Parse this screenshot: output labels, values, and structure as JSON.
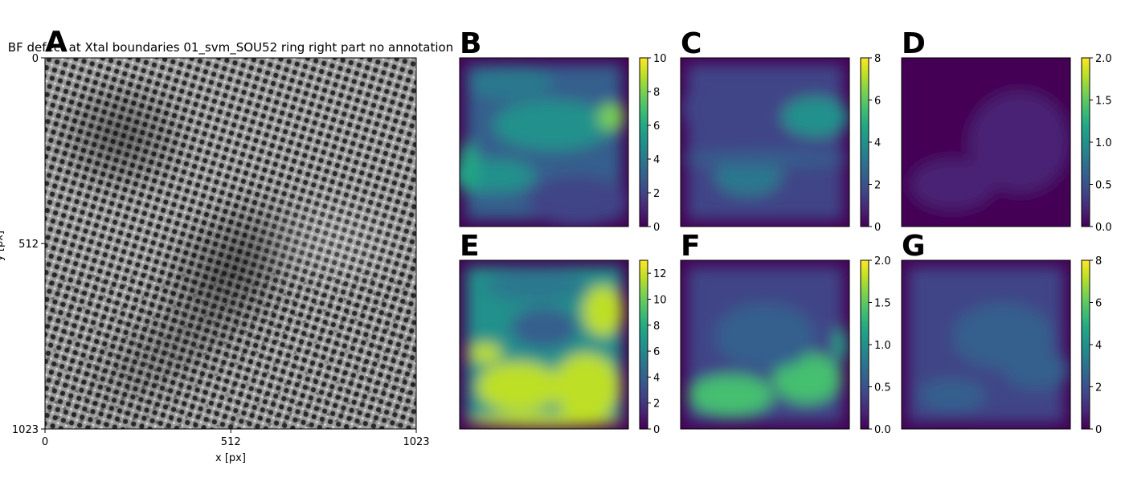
{
  "colors": {
    "viridis": [
      "#440154",
      "#482475",
      "#414487",
      "#355f8d",
      "#2a788e",
      "#21918c",
      "#22a884",
      "#44bf70",
      "#7ad151",
      "#bddf26",
      "#fde725"
    ],
    "axis": "#000000"
  },
  "chart_data": [
    {
      "type": "heatmap",
      "panel": "A",
      "title": "BF defect at Xtal boundaries 01_svm_SOU52 ring right part no annotation",
      "xlabel": "x [px]",
      "ylabel": "y [px]",
      "xlim": [
        0,
        1023
      ],
      "ylim": [
        0,
        1023
      ],
      "xticks": [
        "0",
        "512",
        "1023"
      ],
      "yticks": [
        "0",
        "512",
        "1023"
      ],
      "colormap": "gray",
      "description_visible": "grayscale HRTEM lattice image"
    },
    {
      "type": "heatmap",
      "panel": "B",
      "colormap": "viridis",
      "clim": [
        0,
        10
      ],
      "cbar_ticks": [
        "0",
        "2",
        "4",
        "6",
        "8",
        "10"
      ]
    },
    {
      "type": "heatmap",
      "panel": "C",
      "colormap": "viridis",
      "clim": [
        0,
        8
      ],
      "cbar_ticks": [
        "0",
        "2",
        "4",
        "6",
        "8"
      ]
    },
    {
      "type": "heatmap",
      "panel": "D",
      "colormap": "viridis",
      "clim": [
        0.0,
        2.0
      ],
      "cbar_ticks": [
        "0.0",
        "0.5",
        "1.0",
        "1.5",
        "2.0"
      ]
    },
    {
      "type": "heatmap",
      "panel": "E",
      "colormap": "viridis",
      "clim": [
        0,
        13
      ],
      "cbar_ticks": [
        "0",
        "2",
        "4",
        "6",
        "8",
        "10",
        "12"
      ]
    },
    {
      "type": "heatmap",
      "panel": "F",
      "colormap": "viridis",
      "clim": [
        0.0,
        2.0
      ],
      "cbar_ticks": [
        "0.0",
        "0.5",
        "1.0",
        "1.5",
        "2.0"
      ]
    },
    {
      "type": "heatmap",
      "panel": "G",
      "colormap": "viridis",
      "clim": [
        0,
        8
      ],
      "cbar_ticks": [
        "0",
        "2",
        "4",
        "6",
        "8"
      ]
    }
  ]
}
